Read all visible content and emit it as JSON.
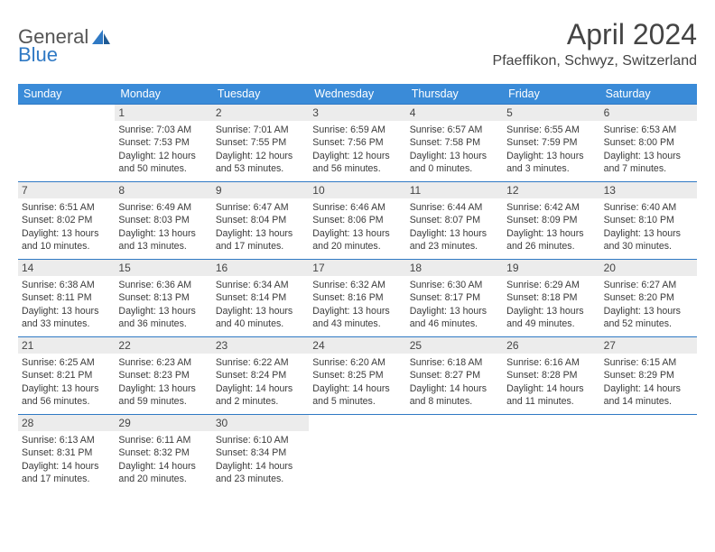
{
  "brand": {
    "part1": "General",
    "part2": "Blue"
  },
  "title": "April 2024",
  "location": "Pfaeffikon, Schwyz, Switzerland",
  "colors": {
    "header_bg": "#3a8bd8",
    "border": "#2f79c4",
    "daynum_bg": "#ececec",
    "text": "#333333"
  },
  "weekdays": [
    "Sunday",
    "Monday",
    "Tuesday",
    "Wednesday",
    "Thursday",
    "Friday",
    "Saturday"
  ],
  "lead_blanks": 1,
  "days": [
    {
      "n": "1",
      "sunrise": "7:03 AM",
      "sunset": "7:53 PM",
      "daylight": "12 hours and 50 minutes."
    },
    {
      "n": "2",
      "sunrise": "7:01 AM",
      "sunset": "7:55 PM",
      "daylight": "12 hours and 53 minutes."
    },
    {
      "n": "3",
      "sunrise": "6:59 AM",
      "sunset": "7:56 PM",
      "daylight": "12 hours and 56 minutes."
    },
    {
      "n": "4",
      "sunrise": "6:57 AM",
      "sunset": "7:58 PM",
      "daylight": "13 hours and 0 minutes."
    },
    {
      "n": "5",
      "sunrise": "6:55 AM",
      "sunset": "7:59 PM",
      "daylight": "13 hours and 3 minutes."
    },
    {
      "n": "6",
      "sunrise": "6:53 AM",
      "sunset": "8:00 PM",
      "daylight": "13 hours and 7 minutes."
    },
    {
      "n": "7",
      "sunrise": "6:51 AM",
      "sunset": "8:02 PM",
      "daylight": "13 hours and 10 minutes."
    },
    {
      "n": "8",
      "sunrise": "6:49 AM",
      "sunset": "8:03 PM",
      "daylight": "13 hours and 13 minutes."
    },
    {
      "n": "9",
      "sunrise": "6:47 AM",
      "sunset": "8:04 PM",
      "daylight": "13 hours and 17 minutes."
    },
    {
      "n": "10",
      "sunrise": "6:46 AM",
      "sunset": "8:06 PM",
      "daylight": "13 hours and 20 minutes."
    },
    {
      "n": "11",
      "sunrise": "6:44 AM",
      "sunset": "8:07 PM",
      "daylight": "13 hours and 23 minutes."
    },
    {
      "n": "12",
      "sunrise": "6:42 AM",
      "sunset": "8:09 PM",
      "daylight": "13 hours and 26 minutes."
    },
    {
      "n": "13",
      "sunrise": "6:40 AM",
      "sunset": "8:10 PM",
      "daylight": "13 hours and 30 minutes."
    },
    {
      "n": "14",
      "sunrise": "6:38 AM",
      "sunset": "8:11 PM",
      "daylight": "13 hours and 33 minutes."
    },
    {
      "n": "15",
      "sunrise": "6:36 AM",
      "sunset": "8:13 PM",
      "daylight": "13 hours and 36 minutes."
    },
    {
      "n": "16",
      "sunrise": "6:34 AM",
      "sunset": "8:14 PM",
      "daylight": "13 hours and 40 minutes."
    },
    {
      "n": "17",
      "sunrise": "6:32 AM",
      "sunset": "8:16 PM",
      "daylight": "13 hours and 43 minutes."
    },
    {
      "n": "18",
      "sunrise": "6:30 AM",
      "sunset": "8:17 PM",
      "daylight": "13 hours and 46 minutes."
    },
    {
      "n": "19",
      "sunrise": "6:29 AM",
      "sunset": "8:18 PM",
      "daylight": "13 hours and 49 minutes."
    },
    {
      "n": "20",
      "sunrise": "6:27 AM",
      "sunset": "8:20 PM",
      "daylight": "13 hours and 52 minutes."
    },
    {
      "n": "21",
      "sunrise": "6:25 AM",
      "sunset": "8:21 PM",
      "daylight": "13 hours and 56 minutes."
    },
    {
      "n": "22",
      "sunrise": "6:23 AM",
      "sunset": "8:23 PM",
      "daylight": "13 hours and 59 minutes."
    },
    {
      "n": "23",
      "sunrise": "6:22 AM",
      "sunset": "8:24 PM",
      "daylight": "14 hours and 2 minutes."
    },
    {
      "n": "24",
      "sunrise": "6:20 AM",
      "sunset": "8:25 PM",
      "daylight": "14 hours and 5 minutes."
    },
    {
      "n": "25",
      "sunrise": "6:18 AM",
      "sunset": "8:27 PM",
      "daylight": "14 hours and 8 minutes."
    },
    {
      "n": "26",
      "sunrise": "6:16 AM",
      "sunset": "8:28 PM",
      "daylight": "14 hours and 11 minutes."
    },
    {
      "n": "27",
      "sunrise": "6:15 AM",
      "sunset": "8:29 PM",
      "daylight": "14 hours and 14 minutes."
    },
    {
      "n": "28",
      "sunrise": "6:13 AM",
      "sunset": "8:31 PM",
      "daylight": "14 hours and 17 minutes."
    },
    {
      "n": "29",
      "sunrise": "6:11 AM",
      "sunset": "8:32 PM",
      "daylight": "14 hours and 20 minutes."
    },
    {
      "n": "30",
      "sunrise": "6:10 AM",
      "sunset": "8:34 PM",
      "daylight": "14 hours and 23 minutes."
    }
  ],
  "labels": {
    "sunrise": "Sunrise:",
    "sunset": "Sunset:",
    "daylight": "Daylight:"
  }
}
